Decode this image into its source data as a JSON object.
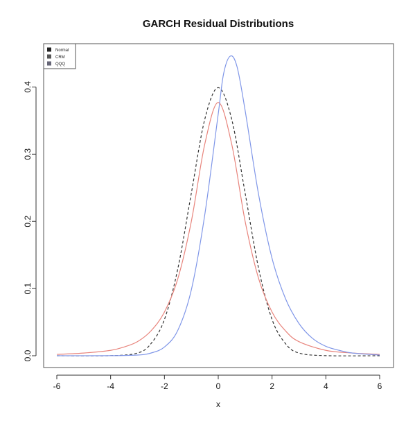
{
  "chart_data": {
    "type": "line",
    "title": "GARCH Residual Distributions",
    "xlabel": "x",
    "ylabel": "",
    "xlim": [
      -6,
      6
    ],
    "ylim": [
      0,
      0.45
    ],
    "xticks": [
      -6,
      -4,
      -2,
      0,
      2,
      4,
      6
    ],
    "yticks": [
      0.0,
      0.1,
      0.2,
      0.3,
      0.4
    ],
    "ytick_labels": [
      "0.0",
      "0.1",
      "0.2",
      "0.3",
      "0.4"
    ],
    "legend": {
      "placement": "top-left",
      "entries": [
        {
          "name": "Normal",
          "color": "#222222"
        },
        {
          "name": "CRM",
          "color": "#555555"
        },
        {
          "name": "QQQ",
          "color": "#666677"
        }
      ]
    },
    "series": [
      {
        "name": "Normal",
        "color": "#333333",
        "dash": "dashed",
        "x": [
          -6,
          -4,
          -3,
          -2.5,
          -2,
          -1.5,
          -1,
          -0.5,
          0,
          0.5,
          1,
          1.5,
          2,
          2.5,
          3,
          4,
          6
        ],
        "y": [
          0.0,
          0.0001,
          0.004,
          0.018,
          0.054,
          0.13,
          0.242,
          0.352,
          0.399,
          0.352,
          0.242,
          0.13,
          0.054,
          0.018,
          0.004,
          0.0001,
          0.0
        ]
      },
      {
        "name": "CRM",
        "color": "#e8847c",
        "dash": "solid",
        "x": [
          -6,
          -5,
          -4,
          -3.5,
          -3,
          -2.5,
          -2,
          -1.5,
          -1,
          -0.5,
          0,
          0.5,
          1,
          1.5,
          2,
          2.5,
          3,
          4,
          5,
          6
        ],
        "y": [
          0.002,
          0.004,
          0.008,
          0.013,
          0.021,
          0.037,
          0.065,
          0.115,
          0.2,
          0.315,
          0.377,
          0.315,
          0.2,
          0.115,
          0.065,
          0.037,
          0.021,
          0.008,
          0.004,
          0.002
        ]
      },
      {
        "name": "QQQ",
        "color": "#7f96e8",
        "dash": "solid",
        "x": [
          -6,
          -4,
          -3,
          -2.5,
          -2,
          -1.5,
          -1,
          -0.5,
          0,
          0.2,
          0.45,
          0.7,
          1,
          1.5,
          2,
          2.5,
          3,
          3.5,
          4,
          4.5,
          5,
          6
        ],
        "y": [
          0.0,
          0.0001,
          0.001,
          0.004,
          0.013,
          0.038,
          0.098,
          0.21,
          0.36,
          0.42,
          0.446,
          0.43,
          0.365,
          0.24,
          0.145,
          0.085,
          0.048,
          0.026,
          0.014,
          0.008,
          0.004,
          0.001
        ]
      }
    ]
  }
}
